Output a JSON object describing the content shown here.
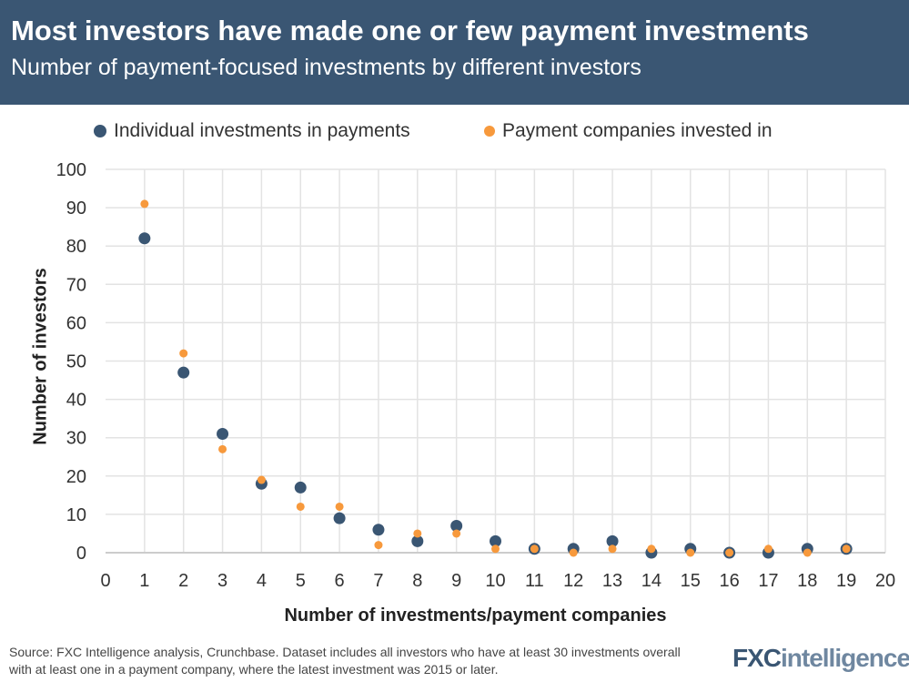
{
  "chart_data": {
    "type": "scatter",
    "title": "Most investors have made one or few payment investments",
    "subtitle": "Number of payment-focused investments by different investors",
    "xlabel": "Number of investments/payment companies",
    "ylabel": "Number of investors",
    "xlim": [
      0,
      20
    ],
    "ylim": [
      0,
      100
    ],
    "xticks": [
      "0",
      "1",
      "2",
      "3",
      "4",
      "5",
      "6",
      "7",
      "8",
      "9",
      "10",
      "11",
      "12",
      "13",
      "14",
      "15",
      "16",
      "17",
      "18",
      "19",
      "20"
    ],
    "yticks": [
      "0",
      "10",
      "20",
      "30",
      "40",
      "50",
      "60",
      "70",
      "80",
      "90",
      "100"
    ],
    "grid": true,
    "legend": "top",
    "x": [
      1,
      2,
      3,
      4,
      5,
      6,
      7,
      8,
      9,
      10,
      11,
      12,
      13,
      14,
      15,
      16,
      17,
      18,
      19
    ],
    "series": [
      {
        "name": "Individual investments in payments",
        "color": "#3a5673",
        "values": [
          82,
          47,
          31,
          18,
          17,
          9,
          6,
          3,
          7,
          3,
          1,
          1,
          3,
          0,
          1,
          0,
          0,
          1,
          1
        ]
      },
      {
        "name": "Payment companies invested in",
        "color": "#f7993c",
        "values": [
          91,
          52,
          27,
          19,
          12,
          12,
          2,
          5,
          5,
          1,
          1,
          0,
          1,
          1,
          0,
          0,
          1,
          0,
          1
        ]
      }
    ]
  },
  "source": "Source: FXC Intelligence analysis, Crunchbase. Dataset includes all investors who have at least 30 investments overall with at least one in a payment company, where the latest investment was 2015 or later.",
  "logo": "FXCintelligence"
}
